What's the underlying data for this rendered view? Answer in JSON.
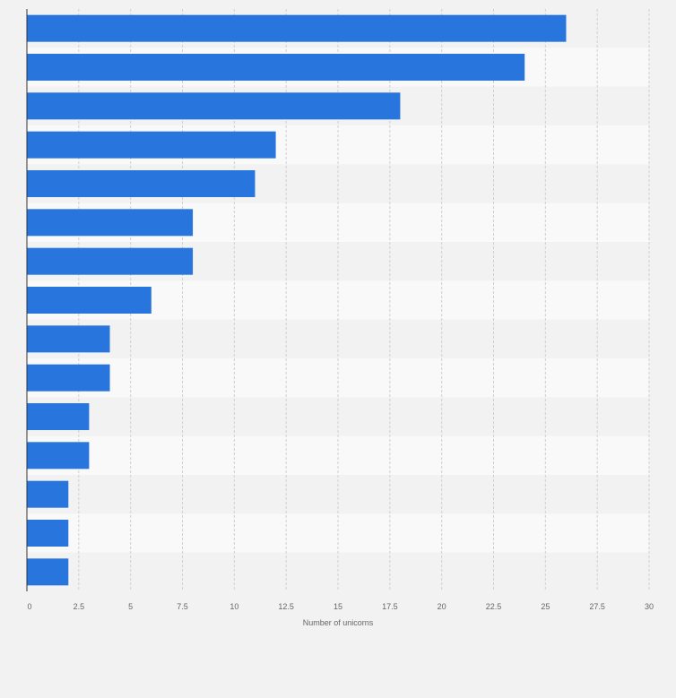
{
  "chart_data": {
    "type": "bar",
    "orientation": "horizontal",
    "values": [
      26,
      24,
      18,
      12,
      11,
      8,
      8,
      6,
      4,
      4,
      3,
      3,
      2,
      2,
      2
    ],
    "xlabel": "Number of unicorns",
    "xlim": [
      0,
      30
    ],
    "xticks": [
      "0",
      "2.5",
      "5",
      "7.5",
      "10",
      "12.5",
      "15",
      "17.5",
      "20",
      "22.5",
      "25",
      "27.5",
      "30"
    ],
    "grid": true,
    "bar_color": "#2876dd"
  }
}
